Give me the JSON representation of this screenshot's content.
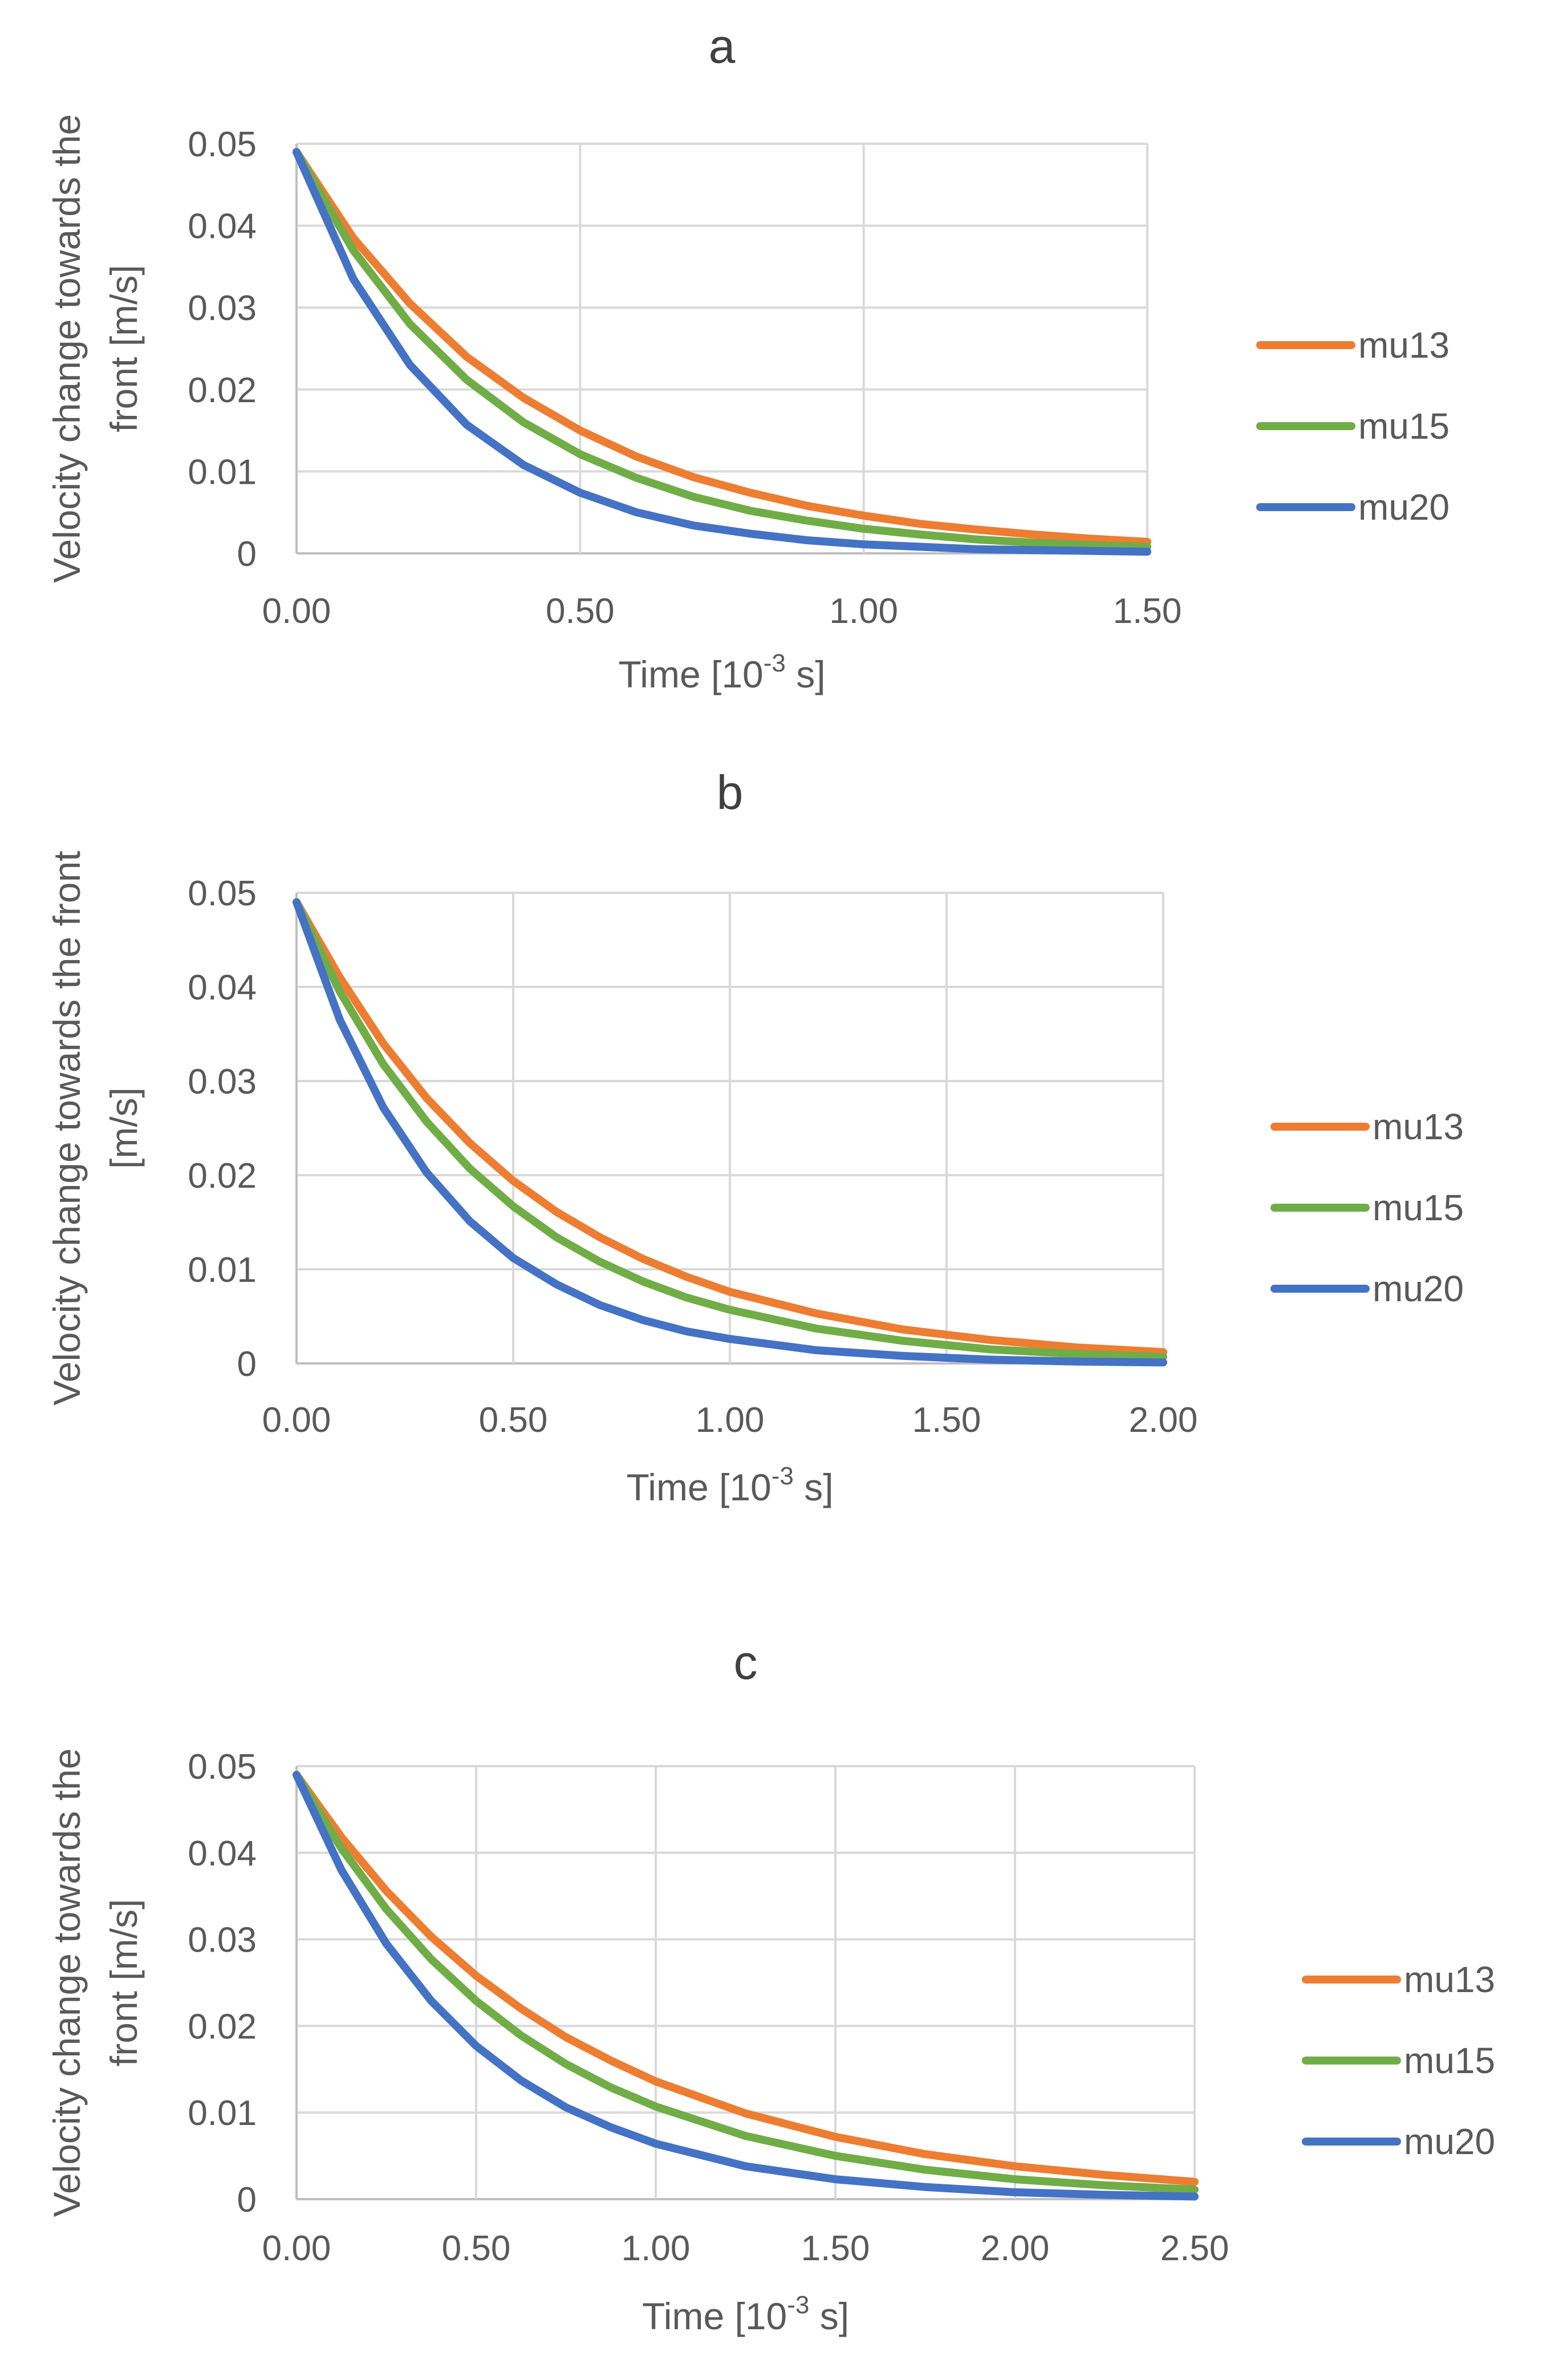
{
  "chart_data": [
    {
      "type": "line",
      "panel_label": "a",
      "title": "a",
      "xlabel": "Time [10",
      "xlabel_sup": "-3",
      "xlabel_suffix": " s]",
      "ylabel_lines": [
        "Velocity change towards the",
        "front [m/s]"
      ],
      "xlim": [
        0,
        1.5
      ],
      "ylim": [
        0,
        0.05
      ],
      "x_ticks": [
        "0.00",
        "0.50",
        "1.00",
        "1.50"
      ],
      "y_ticks": [
        "0",
        "0.01",
        "0.02",
        "0.03",
        "0.04",
        "0.05"
      ],
      "legend_position": "right",
      "series": [
        {
          "name": "mu13",
          "color": "#ED7D31",
          "x": [
            0,
            0.1,
            0.2,
            0.3,
            0.4,
            0.5,
            0.6,
            0.7,
            0.8,
            0.9,
            1.0,
            1.1,
            1.2,
            1.3,
            1.4,
            1.5
          ],
          "values": [
            0.049,
            0.0385,
            0.0305,
            0.024,
            0.019,
            0.015,
            0.0118,
            0.0093,
            0.0074,
            0.0058,
            0.0046,
            0.0036,
            0.0029,
            0.0023,
            0.0018,
            0.0014
          ]
        },
        {
          "name": "mu15",
          "color": "#70AD47",
          "x": [
            0,
            0.1,
            0.2,
            0.3,
            0.4,
            0.5,
            0.6,
            0.7,
            0.8,
            0.9,
            1.0,
            1.1,
            1.2,
            1.3,
            1.4,
            1.5
          ],
          "values": [
            0.049,
            0.037,
            0.028,
            0.0212,
            0.016,
            0.0121,
            0.0092,
            0.0069,
            0.0052,
            0.004,
            0.003,
            0.0023,
            0.0017,
            0.0013,
            0.001,
            0.0008
          ]
        },
        {
          "name": "mu20",
          "color": "#4472C4",
          "x": [
            0,
            0.1,
            0.2,
            0.3,
            0.4,
            0.5,
            0.6,
            0.7,
            0.8,
            0.9,
            1.0,
            1.1,
            1.2,
            1.3,
            1.4,
            1.5
          ],
          "values": [
            0.049,
            0.0335,
            0.023,
            0.0157,
            0.0108,
            0.0074,
            0.005,
            0.0034,
            0.0024,
            0.0016,
            0.0011,
            0.0008,
            0.0005,
            0.0004,
            0.0003,
            0.0002
          ]
        }
      ]
    },
    {
      "type": "line",
      "panel_label": "b",
      "title": "b",
      "xlabel": "Time [10",
      "xlabel_sup": "-3",
      "xlabel_suffix": " s]",
      "ylabel_lines": [
        "Velocity change towards the front",
        "[m/s]"
      ],
      "xlim": [
        0,
        2.0
      ],
      "ylim": [
        0,
        0.05
      ],
      "x_ticks": [
        "0.00",
        "0.50",
        "1.00",
        "1.50",
        "2.00"
      ],
      "y_ticks": [
        "0",
        "0.01",
        "0.02",
        "0.03",
        "0.04",
        "0.05"
      ],
      "legend_position": "right",
      "series": [
        {
          "name": "mu13",
          "color": "#ED7D31",
          "x": [
            0,
            0.1,
            0.2,
            0.3,
            0.4,
            0.5,
            0.6,
            0.7,
            0.8,
            0.9,
            1.0,
            1.2,
            1.4,
            1.6,
            1.8,
            2.0
          ],
          "values": [
            0.049,
            0.041,
            0.034,
            0.0282,
            0.0234,
            0.0194,
            0.0161,
            0.0134,
            0.0111,
            0.0092,
            0.0076,
            0.0053,
            0.0036,
            0.0025,
            0.0017,
            0.0012
          ]
        },
        {
          "name": "mu15",
          "color": "#70AD47",
          "x": [
            0,
            0.1,
            0.2,
            0.3,
            0.4,
            0.5,
            0.6,
            0.7,
            0.8,
            0.9,
            1.0,
            1.2,
            1.4,
            1.6,
            1.8,
            2.0
          ],
          "values": [
            0.049,
            0.0395,
            0.0318,
            0.0257,
            0.0207,
            0.0167,
            0.0134,
            0.0108,
            0.0087,
            0.007,
            0.0057,
            0.0037,
            0.0024,
            0.0015,
            0.001,
            0.0007
          ]
        },
        {
          "name": "mu20",
          "color": "#4472C4",
          "x": [
            0,
            0.1,
            0.2,
            0.3,
            0.4,
            0.5,
            0.6,
            0.7,
            0.8,
            0.9,
            1.0,
            1.2,
            1.4,
            1.6,
            1.8,
            2.0
          ],
          "values": [
            0.049,
            0.0365,
            0.0272,
            0.0203,
            0.0151,
            0.0112,
            0.0084,
            0.0062,
            0.0046,
            0.0034,
            0.0026,
            0.0014,
            0.0008,
            0.0004,
            0.0002,
            0.0001
          ]
        }
      ]
    },
    {
      "type": "line",
      "panel_label": "c",
      "title": "c",
      "xlabel": "Time [10",
      "xlabel_sup": "-3",
      "xlabel_suffix": " s]",
      "ylabel_lines": [
        "Velocity change towards the",
        "front [m/s]"
      ],
      "xlim": [
        0,
        2.5
      ],
      "ylim": [
        0,
        0.05
      ],
      "x_ticks": [
        "0.00",
        "0.50",
        "1.00",
        "1.50",
        "2.00",
        "2.50"
      ],
      "y_ticks": [
        "0",
        "0.01",
        "0.02",
        "0.03",
        "0.04",
        "0.05"
      ],
      "legend_position": "right",
      "series": [
        {
          "name": "mu13",
          "color": "#ED7D31",
          "x": [
            0,
            0.125,
            0.25,
            0.375,
            0.5,
            0.625,
            0.75,
            0.875,
            1.0,
            1.25,
            1.5,
            1.75,
            2.0,
            2.25,
            2.5
          ],
          "values": [
            0.049,
            0.0418,
            0.0356,
            0.0303,
            0.0258,
            0.022,
            0.0187,
            0.016,
            0.0136,
            0.0099,
            0.0072,
            0.0052,
            0.0038,
            0.0028,
            0.002
          ]
        },
        {
          "name": "mu15",
          "color": "#70AD47",
          "x": [
            0,
            0.125,
            0.25,
            0.375,
            0.5,
            0.625,
            0.75,
            0.875,
            1.0,
            1.25,
            1.5,
            1.75,
            2.0,
            2.25,
            2.5
          ],
          "values": [
            0.049,
            0.0405,
            0.0335,
            0.0277,
            0.0229,
            0.0189,
            0.0156,
            0.0129,
            0.0107,
            0.0073,
            0.005,
            0.0034,
            0.0023,
            0.0016,
            0.0011
          ]
        },
        {
          "name": "mu20",
          "color": "#4472C4",
          "x": [
            0,
            0.125,
            0.25,
            0.375,
            0.5,
            0.625,
            0.75,
            0.875,
            1.0,
            1.25,
            1.5,
            1.75,
            2.0,
            2.25,
            2.5
          ],
          "values": [
            0.049,
            0.038,
            0.0295,
            0.0229,
            0.0177,
            0.0137,
            0.0106,
            0.0083,
            0.0064,
            0.0038,
            0.0023,
            0.0014,
            0.0008,
            0.0005,
            0.0003
          ]
        }
      ]
    }
  ]
}
